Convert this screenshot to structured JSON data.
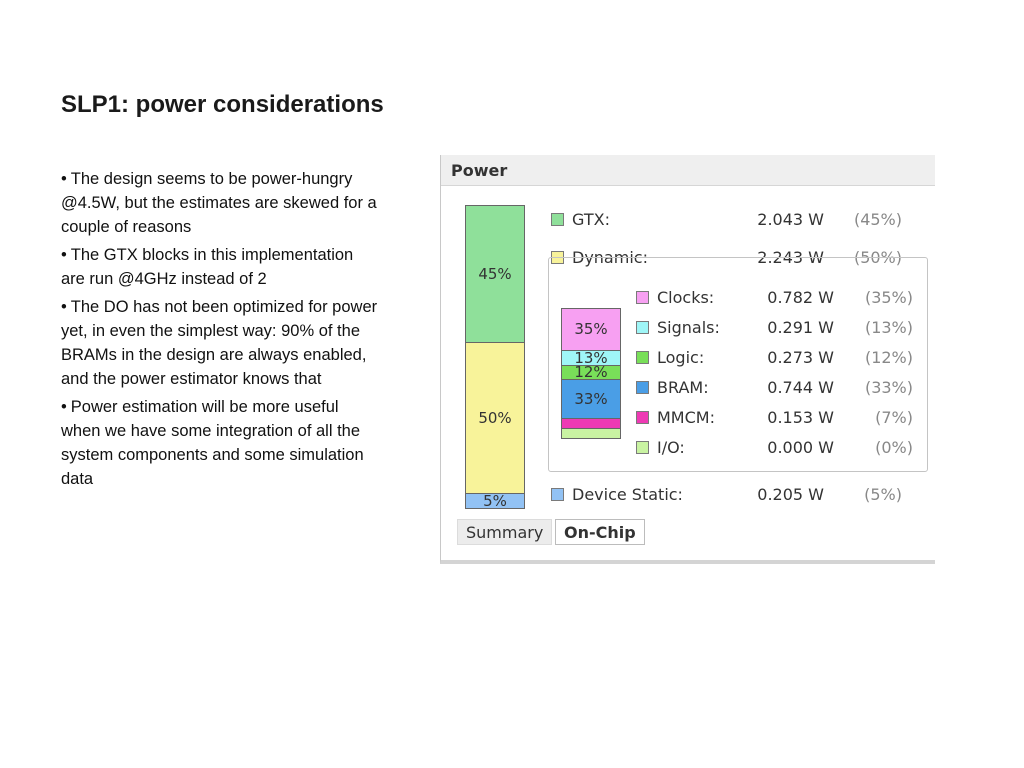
{
  "slide": {
    "title": "SLP1: power considerations",
    "bullets": [
      "The design seems to be power-hungry @4.5W, but the estimates are skewed for a couple of reasons",
      "The GTX blocks in this implementation are run @4GHz instead of 2",
      "The DO has not been optimized for power yet, in even the simplest way: 90% of the BRAMs in the design are always enabled, and the power estimator knows that",
      "Power estimation will be more useful when we have some integration of all the system components and some simulation data"
    ]
  },
  "power": {
    "title": "Power",
    "summary_bar": [
      {
        "label": "45%",
        "fraction": 0.45,
        "color": "#8fe09a"
      },
      {
        "label": "50%",
        "fraction": 0.5,
        "color": "#f8f39a"
      },
      {
        "label": "5%",
        "fraction": 0.05,
        "color": "#92c2f4"
      }
    ],
    "rows": {
      "gtx": {
        "name": "GTX:",
        "value": "2.043 W",
        "percent": "(45%)",
        "color": "#8fe09a"
      },
      "dynamic": {
        "name": "Dynamic:",
        "value": "2.243 W",
        "percent": "(50%)",
        "color": "#f8f39a"
      },
      "device_static": {
        "name": "Device Static:",
        "value": "0.205 W",
        "percent": "(5%)",
        "color": "#92c2f4"
      }
    },
    "dynamic_breakdown": [
      {
        "name": "Clocks:",
        "value": "0.782 W",
        "percent": "(35%)",
        "color": "#f7a0f2",
        "bar_label": "35%",
        "fraction": 0.35
      },
      {
        "name": "Signals:",
        "value": "0.291 W",
        "percent": "(13%)",
        "color": "#9ff6f7",
        "bar_label": "13%",
        "fraction": 0.13
      },
      {
        "name": "Logic:",
        "value": "0.273 W",
        "percent": "(12%)",
        "color": "#79df59",
        "bar_label": "12%",
        "fraction": 0.12
      },
      {
        "name": "BRAM:",
        "value": "0.744 W",
        "percent": "(33%)",
        "color": "#4a9ee6",
        "bar_label": "33%",
        "fraction": 0.33
      },
      {
        "name": "MMCM:",
        "value": "0.153 W",
        "percent": "(7%)",
        "color": "#ee3ab4",
        "bar_label": "",
        "fraction": 0.07
      },
      {
        "name": "I/O:",
        "value": "0.000 W",
        "percent": "(0%)",
        "color": "#c9f3a2",
        "bar_label": "",
        "fraction": 0.0
      }
    ],
    "tabs": {
      "summary": "Summary",
      "on_chip": "On-Chip"
    }
  }
}
